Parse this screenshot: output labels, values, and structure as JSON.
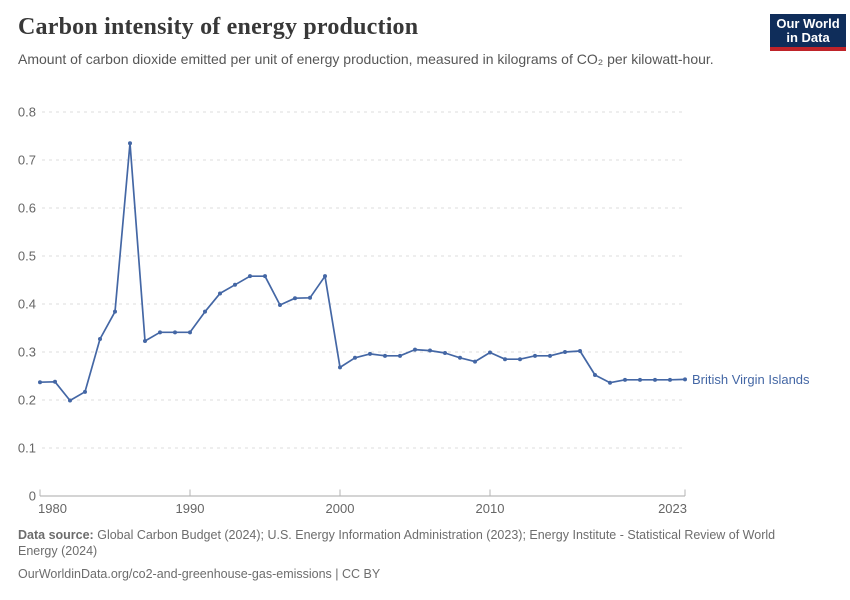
{
  "header": {
    "title": "Carbon intensity of energy production",
    "subtitle": "Amount of carbon dioxide emitted per unit of energy production, measured in kilograms of CO₂ per kilowatt-hour.",
    "logo_line1": "Our World",
    "logo_line2": "in Data"
  },
  "chart_data": {
    "type": "line",
    "title": "Carbon intensity of energy production",
    "xlabel": "",
    "ylabel": "kilograms of CO₂ per kilowatt-hour",
    "ylim": [
      0,
      0.8
    ],
    "y_ticks": [
      0,
      0.1,
      0.2,
      0.3,
      0.4,
      0.5,
      0.6,
      0.7,
      0.8
    ],
    "x_ticks": [
      1980,
      1990,
      2000,
      2010,
      2023
    ],
    "grid": "horizontal-dashed",
    "legend_position": "end-of-line-label",
    "series": [
      {
        "name": "British Virgin Islands",
        "color": "#4467a5",
        "x": [
          1980,
          1981,
          1982,
          1983,
          1984,
          1985,
          1986,
          1987,
          1988,
          1989,
          1990,
          1991,
          1992,
          1993,
          1994,
          1995,
          1996,
          1997,
          1998,
          1999,
          2000,
          2001,
          2002,
          2003,
          2004,
          2005,
          2006,
          2007,
          2008,
          2009,
          2010,
          2011,
          2012,
          2013,
          2014,
          2015,
          2016,
          2017,
          2018,
          2019,
          2020,
          2021,
          2022,
          2023
        ],
        "values": [
          0.237,
          0.238,
          0.199,
          0.217,
          0.327,
          0.384,
          0.735,
          0.323,
          0.341,
          0.341,
          0.341,
          0.384,
          0.422,
          0.44,
          0.458,
          0.458,
          0.398,
          0.412,
          0.413,
          0.458,
          0.268,
          0.288,
          0.296,
          0.292,
          0.292,
          0.305,
          0.303,
          0.298,
          0.288,
          0.28,
          0.299,
          0.285,
          0.285,
          0.292,
          0.292,
          0.3,
          0.302,
          0.252,
          0.236,
          0.242,
          0.242,
          0.242,
          0.242,
          0.243
        ]
      }
    ]
  },
  "footer": {
    "source_label": "Data source:",
    "source_text": "Global Carbon Budget (2024); U.S. Energy Information Administration (2023); Energy Institute - Statistical Review of World Energy (2024)",
    "license_line": "OurWorldinData.org/co2-and-greenhouse-gas-emissions | CC BY"
  },
  "colors": {
    "line": "#4467a5",
    "grid": "#dcdcdc",
    "axis": "#a9a9a9",
    "tick": "#b5b5b5",
    "tick_label": "#666666",
    "logo_bg": "#0f2d5a",
    "logo_stripe": "#bf2329"
  }
}
